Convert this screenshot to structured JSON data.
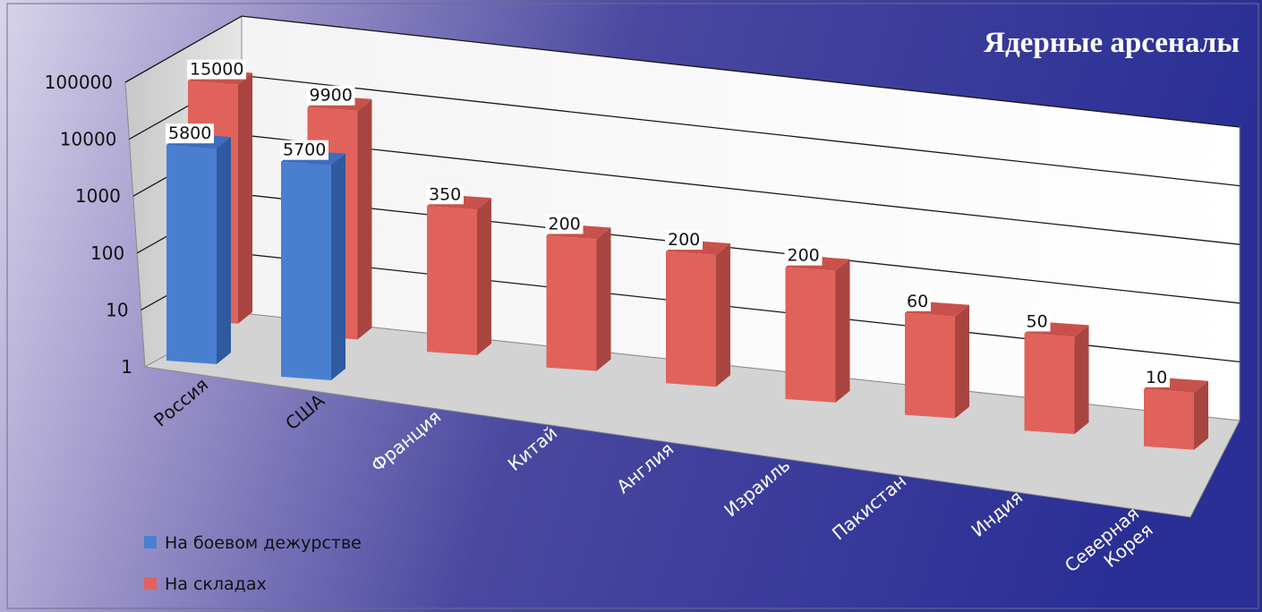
{
  "chart_data": {
    "type": "bar",
    "title": "Ядерные арсеналы",
    "scale": "log",
    "ylim": [
      1,
      100000
    ],
    "y_ticks": [
      "1",
      "10",
      "100",
      "1000",
      "10000",
      "100000"
    ],
    "categories": [
      "Россия",
      "США",
      "Франция",
      "Китай",
      "Англия",
      "Израиль",
      "Пакистан",
      "Индия",
      "Северная Корея"
    ],
    "series": [
      {
        "name": "На боевом дежурстве",
        "color": "#4a7fd0",
        "values": [
          5800,
          5700,
          null,
          null,
          null,
          null,
          null,
          null,
          null
        ]
      },
      {
        "name": "На складах",
        "color": "#e0625a",
        "values": [
          15000,
          9900,
          350,
          200,
          200,
          200,
          60,
          50,
          10
        ]
      }
    ],
    "data_labels": {
      "s0": [
        "5800",
        "5700",
        "",
        "",
        "",
        "",
        "",
        "",
        ""
      ],
      "s1": [
        "15000",
        "9900",
        "350",
        "200",
        "200",
        "200",
        "60",
        "50",
        "10"
      ]
    },
    "legend_position": "bottom-left",
    "grid": true
  }
}
